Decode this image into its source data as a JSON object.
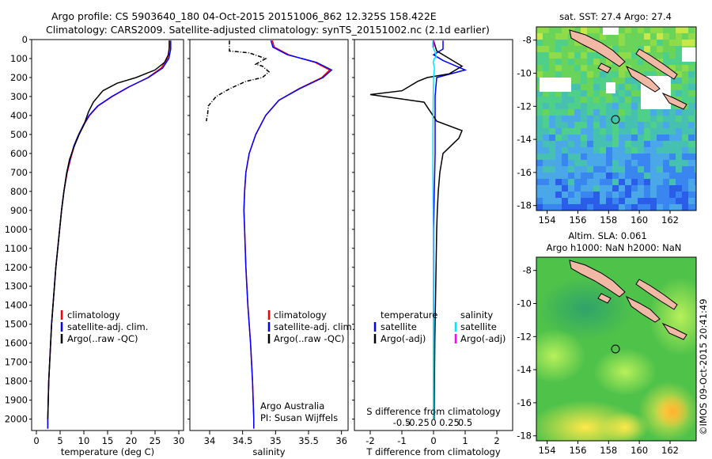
{
  "header": {
    "line1": "Argo profile: CS 5903640_180 04-Oct-2015 20151006_862 12.325S 158.422E",
    "line2": "Climatology: CARS2009. Satellite-adjusted climatology: synTS_20151002.nc (2.1d earlier)"
  },
  "credit": "©IMOS 09-Oct-2015 20:41:49",
  "colors": {
    "climatology": "#ff0000",
    "satellite": "#0000ff",
    "argo": "#000000",
    "salinity_satellite": "#00e5ff",
    "salinity_argo": "#ff00ff"
  },
  "chart_data": [
    {
      "id": "temperature",
      "type": "line",
      "xlabel": "temperature (deg C)",
      "xlim": [
        -1,
        31
      ],
      "ylim": [
        2060,
        0
      ],
      "xticks": [
        0,
        5,
        10,
        15,
        20,
        25,
        30
      ],
      "yticks": [
        0,
        100,
        200,
        300,
        400,
        500,
        600,
        700,
        800,
        900,
        1000,
        1100,
        1200,
        1300,
        1400,
        1500,
        1600,
        1700,
        1800,
        1900,
        2000
      ],
      "legend": {
        "placement": "bottom-center",
        "entries": [
          "climatology",
          "satellite-adj. clim.",
          "Argo(..raw -QC)"
        ]
      },
      "series": [
        {
          "name": "climatology",
          "color": "#ff0000",
          "style": "solid",
          "points": [
            [
              28.0,
              5
            ],
            [
              28.0,
              50
            ],
            [
              27.6,
              100
            ],
            [
              26.3,
              150
            ],
            [
              23.5,
              200
            ],
            [
              19.5,
              250
            ],
            [
              16.0,
              300
            ],
            [
              13.0,
              350
            ],
            [
              11.2,
              400
            ],
            [
              10.0,
              450
            ],
            [
              9.0,
              500
            ],
            [
              8.0,
              560
            ],
            [
              7.2,
              630
            ],
            [
              6.5,
              700
            ],
            [
              5.8,
              800
            ],
            [
              5.3,
              900
            ],
            [
              4.9,
              1000
            ],
            [
              4.5,
              1100
            ],
            [
              4.1,
              1200
            ],
            [
              3.8,
              1300
            ],
            [
              3.5,
              1400
            ],
            [
              3.2,
              1500
            ],
            [
              3.0,
              1600
            ],
            [
              2.8,
              1700
            ],
            [
              2.6,
              1800
            ],
            [
              2.5,
              1900
            ],
            [
              2.4,
              2000
            ],
            [
              2.4,
              2050
            ]
          ]
        },
        {
          "name": "satellite-adj. clim.",
          "color": "#0000ff",
          "style": "solid",
          "points": [
            [
              28.3,
              5
            ],
            [
              28.3,
              50
            ],
            [
              27.9,
              100
            ],
            [
              26.6,
              150
            ],
            [
              23.6,
              200
            ],
            [
              19.4,
              250
            ],
            [
              15.9,
              300
            ],
            [
              12.9,
              350
            ],
            [
              11.1,
              400
            ],
            [
              9.9,
              450
            ],
            [
              8.9,
              500
            ],
            [
              7.9,
              560
            ],
            [
              7.1,
              630
            ],
            [
              6.4,
              700
            ],
            [
              5.8,
              800
            ],
            [
              5.3,
              900
            ],
            [
              4.9,
              1000
            ],
            [
              4.5,
              1100
            ],
            [
              4.1,
              1200
            ],
            [
              3.8,
              1300
            ],
            [
              3.5,
              1400
            ],
            [
              3.2,
              1500
            ],
            [
              3.0,
              1600
            ],
            [
              2.8,
              1700
            ],
            [
              2.6,
              1800
            ],
            [
              2.5,
              1900
            ],
            [
              2.4,
              2000
            ],
            [
              2.4,
              2050
            ]
          ]
        },
        {
          "name": "Argo(..raw -QC)",
          "color": "#000000",
          "style": "solid",
          "points": [
            [
              28.0,
              5
            ],
            [
              28.0,
              40
            ],
            [
              27.8,
              80
            ],
            [
              27.0,
              120
            ],
            [
              25.0,
              160
            ],
            [
              21.0,
              200
            ],
            [
              17.0,
              230
            ],
            [
              14.0,
              270
            ],
            [
              13.0,
              300
            ],
            [
              12.0,
              330
            ],
            [
              11.0,
              380
            ],
            [
              10.0,
              450
            ],
            [
              9.0,
              500
            ],
            [
              8.0,
              560
            ],
            [
              7.0,
              630
            ],
            [
              6.4,
              700
            ],
            [
              5.8,
              800
            ],
            [
              5.3,
              900
            ],
            [
              4.9,
              1000
            ],
            [
              4.5,
              1100
            ],
            [
              4.1,
              1200
            ],
            [
              3.8,
              1300
            ],
            [
              3.5,
              1400
            ],
            [
              3.2,
              1500
            ],
            [
              3.0,
              1600
            ],
            [
              2.8,
              1700
            ],
            [
              2.6,
              1800
            ],
            [
              2.5,
              1900
            ],
            [
              2.4,
              2000
            ]
          ]
        }
      ]
    },
    {
      "id": "salinity",
      "type": "line",
      "xlabel": "salinity",
      "xlim": [
        33.7,
        36.1
      ],
      "ylim": [
        2060,
        0
      ],
      "xticks": [
        34,
        34.5,
        35,
        35.5,
        36
      ],
      "legend": {
        "placement": "bottom-right",
        "entries": [
          "climatology",
          "satellite-adj. clim.",
          "Argo(..raw -QC)"
        ]
      },
      "annotations": [
        "Argo Australia",
        "PI: Susan Wijffels"
      ],
      "series": [
        {
          "name": "climatology",
          "color": "#ff0000",
          "style": "solid",
          "points": [
            [
              34.95,
              5
            ],
            [
              34.98,
              40
            ],
            [
              35.2,
              80
            ],
            [
              35.6,
              120
            ],
            [
              35.82,
              160
            ],
            [
              35.7,
              200
            ],
            [
              35.35,
              260
            ],
            [
              35.05,
              320
            ],
            [
              34.85,
              400
            ],
            [
              34.7,
              500
            ],
            [
              34.6,
              600
            ],
            [
              34.55,
              700
            ],
            [
              34.53,
              800
            ],
            [
              34.52,
              900
            ],
            [
              34.53,
              1000
            ],
            [
              34.55,
              1200
            ],
            [
              34.58,
              1400
            ],
            [
              34.62,
              1600
            ],
            [
              34.65,
              1800
            ],
            [
              34.67,
              2000
            ],
            [
              34.67,
              2050
            ]
          ]
        },
        {
          "name": "satellite-adj. clim.",
          "color": "#0000ff",
          "style": "solid",
          "points": [
            [
              34.93,
              5
            ],
            [
              34.96,
              40
            ],
            [
              35.18,
              80
            ],
            [
              35.62,
              120
            ],
            [
              35.85,
              160
            ],
            [
              35.72,
              200
            ],
            [
              35.36,
              260
            ],
            [
              35.05,
              320
            ],
            [
              34.85,
              400
            ],
            [
              34.7,
              500
            ],
            [
              34.6,
              600
            ],
            [
              34.55,
              700
            ],
            [
              34.53,
              800
            ],
            [
              34.52,
              900
            ],
            [
              34.53,
              1000
            ],
            [
              34.55,
              1200
            ],
            [
              34.58,
              1400
            ],
            [
              34.62,
              1600
            ],
            [
              34.65,
              1800
            ],
            [
              34.67,
              2000
            ],
            [
              34.67,
              2050
            ]
          ]
        },
        {
          "name": "Argo(..raw -QC)",
          "color": "#000000",
          "style": "dashdot",
          "points": [
            [
              34.3,
              5
            ],
            [
              34.3,
              60
            ],
            [
              34.6,
              70
            ],
            [
              34.85,
              100
            ],
            [
              34.7,
              130
            ],
            [
              34.8,
              140
            ],
            [
              34.9,
              170
            ],
            [
              34.8,
              200
            ],
            [
              34.55,
              220
            ],
            [
              34.3,
              260
            ],
            [
              34.1,
              300
            ],
            [
              33.98,
              350
            ],
            [
              33.97,
              390
            ],
            [
              33.95,
              430
            ]
          ]
        }
      ]
    },
    {
      "id": "difference",
      "type": "line",
      "xlabel": "T difference from climatology",
      "xlabel_top": "S difference from climatology",
      "xlim": [
        -2.5,
        2.5
      ],
      "ylim": [
        2060,
        0
      ],
      "xticks": [
        -2,
        -1,
        0,
        1,
        2
      ],
      "sticks_labels": [
        "-0.5",
        "-0.25",
        "0",
        "0.25",
        "0.5"
      ],
      "sticks_values": [
        -0.5,
        -0.25,
        0,
        0.25,
        0.5
      ],
      "legend": {
        "placement": "bottom",
        "group_titles": [
          "temperature",
          "salinity"
        ],
        "entries": [
          "satellite",
          "Argo(-adj)",
          "satellite",
          "Argo(-adj)"
        ]
      },
      "series": [
        {
          "name": "temperature satellite",
          "color": "#0000ff",
          "style": "solid",
          "points": [
            [
              0.3,
              5
            ],
            [
              0.3,
              50
            ],
            [
              0.0,
              80
            ],
            [
              0.3,
              110
            ],
            [
              1.0,
              160
            ],
            [
              0.1,
              200
            ],
            [
              0.05,
              300
            ],
            [
              0.05,
              600
            ],
            [
              0.0,
              1000
            ],
            [
              0.0,
              1500
            ],
            [
              0.0,
              2000
            ]
          ]
        },
        {
          "name": "temperature Argo(-adj)",
          "color": "#000000",
          "style": "solid",
          "points": [
            [
              0.0,
              5
            ],
            [
              0.1,
              60
            ],
            [
              0.5,
              100
            ],
            [
              0.9,
              140
            ],
            [
              0.5,
              180
            ],
            [
              -0.2,
              200
            ],
            [
              -0.5,
              220
            ],
            [
              -0.8,
              250
            ],
            [
              -1.0,
              270
            ],
            [
              -2.0,
              290
            ],
            [
              -0.3,
              330
            ],
            [
              -0.1,
              380
            ],
            [
              0.1,
              430
            ],
            [
              0.9,
              480
            ],
            [
              0.8,
              520
            ],
            [
              0.3,
              600
            ],
            [
              0.2,
              700
            ],
            [
              0.15,
              800
            ],
            [
              0.12,
              900
            ],
            [
              0.1,
              1000
            ],
            [
              0.08,
              1200
            ],
            [
              0.06,
              1400
            ],
            [
              0.04,
              1600
            ],
            [
              0.03,
              1800
            ],
            [
              0.02,
              2000
            ]
          ]
        },
        {
          "name": "salinity satellite",
          "color": "#00e5ff",
          "style": "solid",
          "points": [
            [
              -0.02,
              5
            ],
            [
              -0.02,
              40
            ],
            [
              0.06,
              70
            ],
            [
              0.09,
              90
            ],
            [
              0.02,
              100
            ],
            [
              -0.01,
              120
            ],
            [
              0.03,
              150
            ],
            [
              0.0,
              200
            ],
            [
              -0.01,
              300
            ],
            [
              -0.02,
              500
            ],
            [
              -0.02,
              700
            ],
            [
              -0.01,
              1000
            ],
            [
              0.0,
              1500
            ],
            [
              0.0,
              2000
            ]
          ]
        },
        {
          "name": "salinity Argo(-adj)",
          "color": "#ff00ff",
          "style": "solid",
          "points": [
            [
              0.0,
              5
            ],
            [
              0.0,
              40
            ]
          ]
        }
      ]
    },
    {
      "id": "sst_map",
      "type": "heatmap",
      "title": "sat. SST: 27.4 Argo: 27.4",
      "xlim": [
        153.3,
        163.7
      ],
      "ylim": [
        -18.3,
        -7.2
      ],
      "xticks": [
        154,
        156,
        158,
        160,
        162
      ],
      "yticks": [
        -8,
        -10,
        -12,
        -14,
        -16,
        -18
      ],
      "marker": {
        "lon": 158.422,
        "lat": -12.325
      }
    },
    {
      "id": "sla_map",
      "type": "heatmap",
      "title": "Altim. SLA: 0.061",
      "subtitle": "Argo h1000: NaN h2000: NaN",
      "xlim": [
        153.3,
        163.7
      ],
      "ylim": [
        -18.3,
        -7.2
      ],
      "xticks": [
        154,
        156,
        158,
        160,
        162
      ],
      "yticks": [
        -8,
        -10,
        -12,
        -14,
        -16,
        -18
      ],
      "marker": {
        "lon": 158.422,
        "lat": -12.325
      }
    }
  ]
}
